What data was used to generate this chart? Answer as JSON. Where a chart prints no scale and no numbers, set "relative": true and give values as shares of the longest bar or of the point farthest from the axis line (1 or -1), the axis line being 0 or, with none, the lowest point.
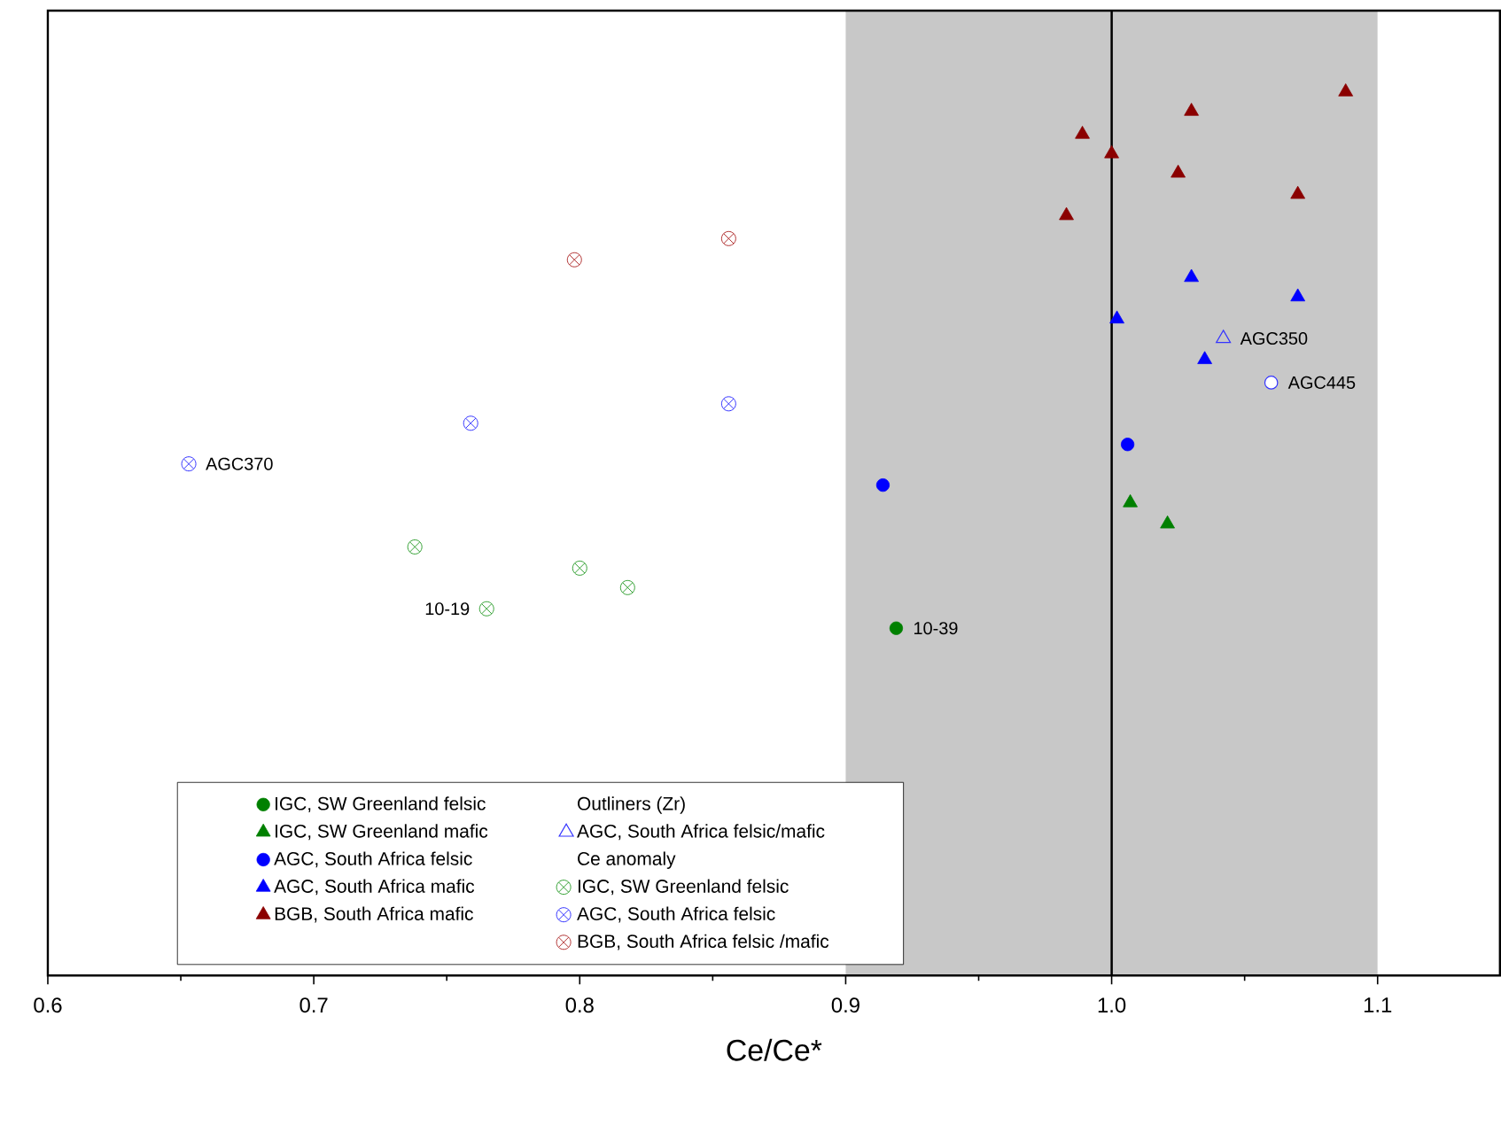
{
  "chart_data": {
    "type": "scatter",
    "xlabel": "Ce/Ce*",
    "relative": true,
    "tick_labels": "x",
    "legend": "bottom",
    "grid": false,
    "xlim": [
      0.6,
      1.146
    ],
    "xticks": [
      0.6,
      0.7,
      0.8,
      0.9,
      {
        "value": 1.0,
        "label": "1.0"
      },
      1.1
    ],
    "bands": [
      {
        "axis": "x",
        "from": 0.9,
        "to": 1.1,
        "color": "#c8c8c8"
      }
    ],
    "ref_lines": [
      {
        "axis": "x",
        "value": 1.0,
        "color": "#000000",
        "line_style": "solid"
      }
    ],
    "annotations": [
      {
        "text": "AGC370",
        "x": 0.653,
        "y": 0.579
      },
      {
        "text": "10-19",
        "x": 0.765,
        "y": 0.415
      },
      {
        "text": "10-39",
        "x": 0.919,
        "y": 0.393
      },
      {
        "text": "AGC350",
        "x": 1.042,
        "y": 0.721
      },
      {
        "text": "AGC445",
        "x": 1.06,
        "y": 0.671
      },
      "Outliners (Zr)",
      "Ce anomaly"
    ],
    "series": [
      {
        "name": "IGC, SW Greenland felsic",
        "color": "#008000",
        "marker": "circle",
        "x": [
          0.919
        ],
        "values": [
          0.393
        ]
      },
      {
        "name": "IGC, SW Greenland mafic",
        "color": "#008000",
        "marker": "triangle",
        "x": [
          1.007,
          1.021
        ],
        "values": [
          0.535,
          0.511
        ]
      },
      {
        "name": "AGC, South Africa felsic",
        "color": "#0000ff",
        "marker": "circle",
        "x": [
          1.006,
          0.914
        ],
        "values": [
          0.601,
          0.555
        ]
      },
      {
        "name": "AGC, South Africa mafic",
        "color": "#0000ff",
        "marker": "triangle",
        "x": [
          1.03,
          1.002,
          1.07,
          1.035
        ],
        "values": [
          0.79,
          0.743,
          0.768,
          0.697
        ]
      },
      {
        "name": "BGB, South Africa mafic",
        "color": "#8b0000",
        "marker": "triangle",
        "x": [
          0.989,
          1.0,
          1.03,
          1.025,
          1.088,
          1.07,
          0.983
        ],
        "values": [
          0.952,
          0.93,
          0.978,
          0.908,
          1,
          0.884,
          0.86
        ]
      },
      {
        "color": "#3333ff",
        "marker": "circle",
        "x": [
          1.06
        ],
        "values": [
          0.671
        ]
      },
      {
        "name": "AGC, South Africa felsic/mafic",
        "color": "#3333ff",
        "marker": "triangle",
        "x": [
          1.042
        ],
        "values": [
          0.721
        ]
      },
      {
        "name": "IGC, SW Greenland felsic",
        "color": "#33a033",
        "marker": "cross",
        "x": [
          0.738,
          0.8,
          0.818,
          0.765
        ],
        "values": [
          0.485,
          0.461,
          0.439,
          0.415
        ]
      },
      {
        "name": "AGC, South Africa felsic",
        "color": "#3333ff",
        "marker": "cross",
        "x": [
          0.653,
          0.759,
          0.856
        ],
        "values": [
          0.579,
          0.625,
          0.647
        ]
      },
      {
        "name": "BGB, South Africa felsic /mafic",
        "color": "#b03030",
        "marker": "cross",
        "x": [
          0.798,
          0.856
        ],
        "values": [
          0.81,
          0.834
        ]
      }
    ]
  }
}
